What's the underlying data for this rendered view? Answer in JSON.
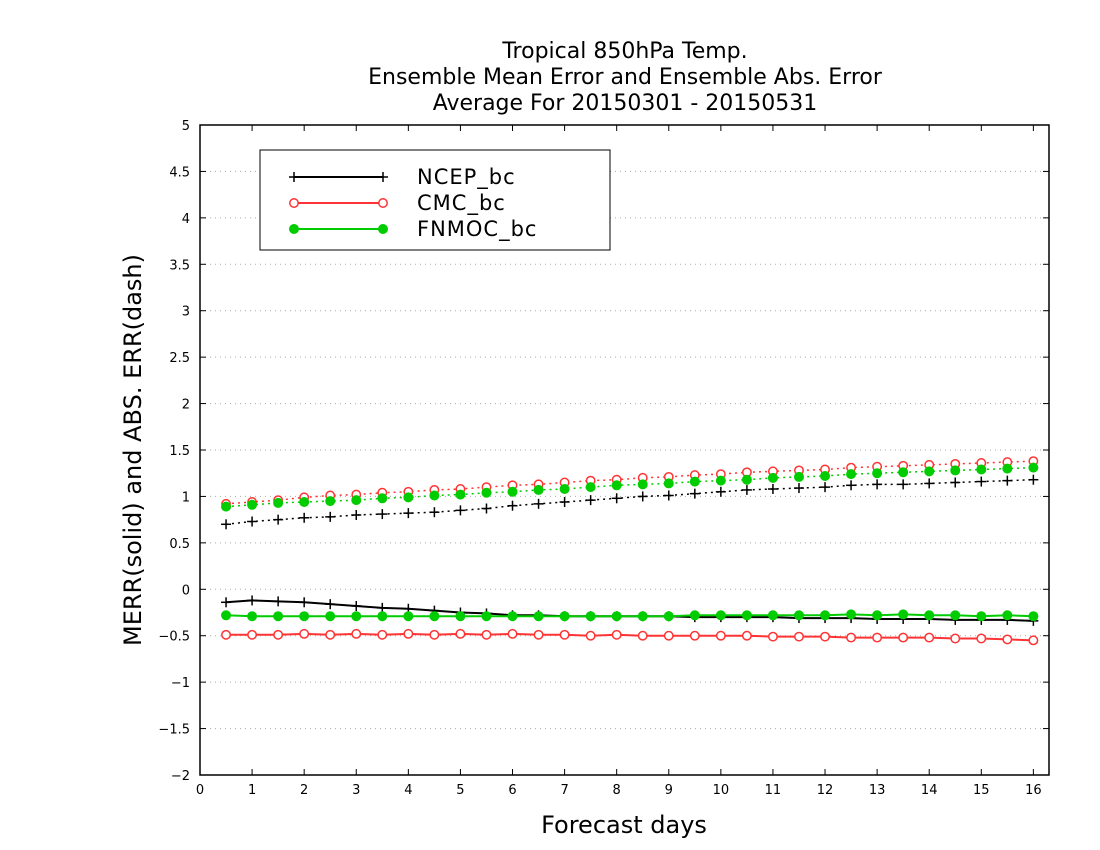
{
  "chart_data": {
    "type": "line",
    "title": [
      "Tropical 850hPa Temp.",
      "Ensemble Mean Error and Ensemble Abs. Error",
      "Average For 20150301 - 20150531"
    ],
    "xlabel": "Forecast days",
    "ylabel": "MERR(solid) and ABS. ERR(dash)",
    "xlim": [
      0,
      16.3
    ],
    "ylim": [
      -2,
      5
    ],
    "xticks": [
      "0",
      "1",
      "2",
      "3",
      "4",
      "5",
      "6",
      "7",
      "8",
      "9",
      "10",
      "11",
      "12",
      "13",
      "14",
      "15",
      "16"
    ],
    "yticks": [
      "−2",
      "−1.5",
      "−1",
      "−0.5",
      "0",
      "0.5",
      "1",
      "1.5",
      "2",
      "2.5",
      "3",
      "3.5",
      "4",
      "4.5",
      "5"
    ],
    "grid": "horizontal dotted",
    "legend_placement": "top-left",
    "x": [
      0.5,
      1,
      1.5,
      2,
      2.5,
      3,
      3.5,
      4,
      4.5,
      5,
      5.5,
      6,
      6.5,
      7,
      7.5,
      8,
      8.5,
      9,
      9.5,
      10,
      10.5,
      11,
      11.5,
      12,
      12.5,
      13,
      13.5,
      14,
      14.5,
      15,
      15.5,
      16
    ],
    "series": [
      {
        "name": "NCEP_bc",
        "color": "#000000",
        "marker": "plus",
        "merr": [
          -0.14,
          -0.12,
          -0.13,
          -0.14,
          -0.16,
          -0.18,
          -0.2,
          -0.21,
          -0.23,
          -0.25,
          -0.26,
          -0.28,
          -0.28,
          -0.29,
          -0.29,
          -0.29,
          -0.29,
          -0.29,
          -0.3,
          -0.3,
          -0.3,
          -0.3,
          -0.31,
          -0.31,
          -0.31,
          -0.32,
          -0.32,
          -0.32,
          -0.33,
          -0.33,
          -0.33,
          -0.34
        ],
        "abs_err": [
          0.7,
          0.73,
          0.75,
          0.77,
          0.78,
          0.8,
          0.81,
          0.82,
          0.83,
          0.85,
          0.87,
          0.9,
          0.92,
          0.94,
          0.96,
          0.98,
          1.0,
          1.01,
          1.03,
          1.05,
          1.07,
          1.08,
          1.09,
          1.1,
          1.12,
          1.13,
          1.13,
          1.14,
          1.15,
          1.16,
          1.17,
          1.18
        ]
      },
      {
        "name": "CMC_bc",
        "color": "#ff3333",
        "marker": "open-circle",
        "merr": [
          -0.49,
          -0.49,
          -0.49,
          -0.48,
          -0.49,
          -0.48,
          -0.49,
          -0.48,
          -0.49,
          -0.48,
          -0.49,
          -0.48,
          -0.49,
          -0.49,
          -0.5,
          -0.49,
          -0.5,
          -0.5,
          -0.5,
          -0.5,
          -0.5,
          -0.51,
          -0.51,
          -0.51,
          -0.52,
          -0.52,
          -0.52,
          -0.52,
          -0.53,
          -0.53,
          -0.54,
          -0.55
        ],
        "abs_err": [
          0.92,
          0.94,
          0.96,
          0.99,
          1.01,
          1.02,
          1.04,
          1.05,
          1.07,
          1.08,
          1.1,
          1.12,
          1.13,
          1.15,
          1.17,
          1.18,
          1.2,
          1.21,
          1.23,
          1.24,
          1.26,
          1.27,
          1.28,
          1.29,
          1.31,
          1.32,
          1.33,
          1.34,
          1.35,
          1.36,
          1.37,
          1.38
        ]
      },
      {
        "name": "FNMOC_bc",
        "color": "#00cc00",
        "marker": "filled-circle",
        "merr": [
          -0.28,
          -0.29,
          -0.29,
          -0.29,
          -0.29,
          -0.29,
          -0.29,
          -0.29,
          -0.29,
          -0.29,
          -0.29,
          -0.29,
          -0.29,
          -0.29,
          -0.29,
          -0.29,
          -0.29,
          -0.29,
          -0.28,
          -0.28,
          -0.28,
          -0.28,
          -0.28,
          -0.28,
          -0.27,
          -0.28,
          -0.27,
          -0.28,
          -0.28,
          -0.29,
          -0.28,
          -0.29
        ],
        "abs_err": [
          0.89,
          0.91,
          0.93,
          0.94,
          0.95,
          0.96,
          0.98,
          0.99,
          1.01,
          1.02,
          1.04,
          1.05,
          1.07,
          1.08,
          1.1,
          1.12,
          1.13,
          1.14,
          1.16,
          1.17,
          1.18,
          1.2,
          1.21,
          1.22,
          1.24,
          1.25,
          1.26,
          1.27,
          1.28,
          1.29,
          1.3,
          1.31
        ]
      }
    ]
  }
}
